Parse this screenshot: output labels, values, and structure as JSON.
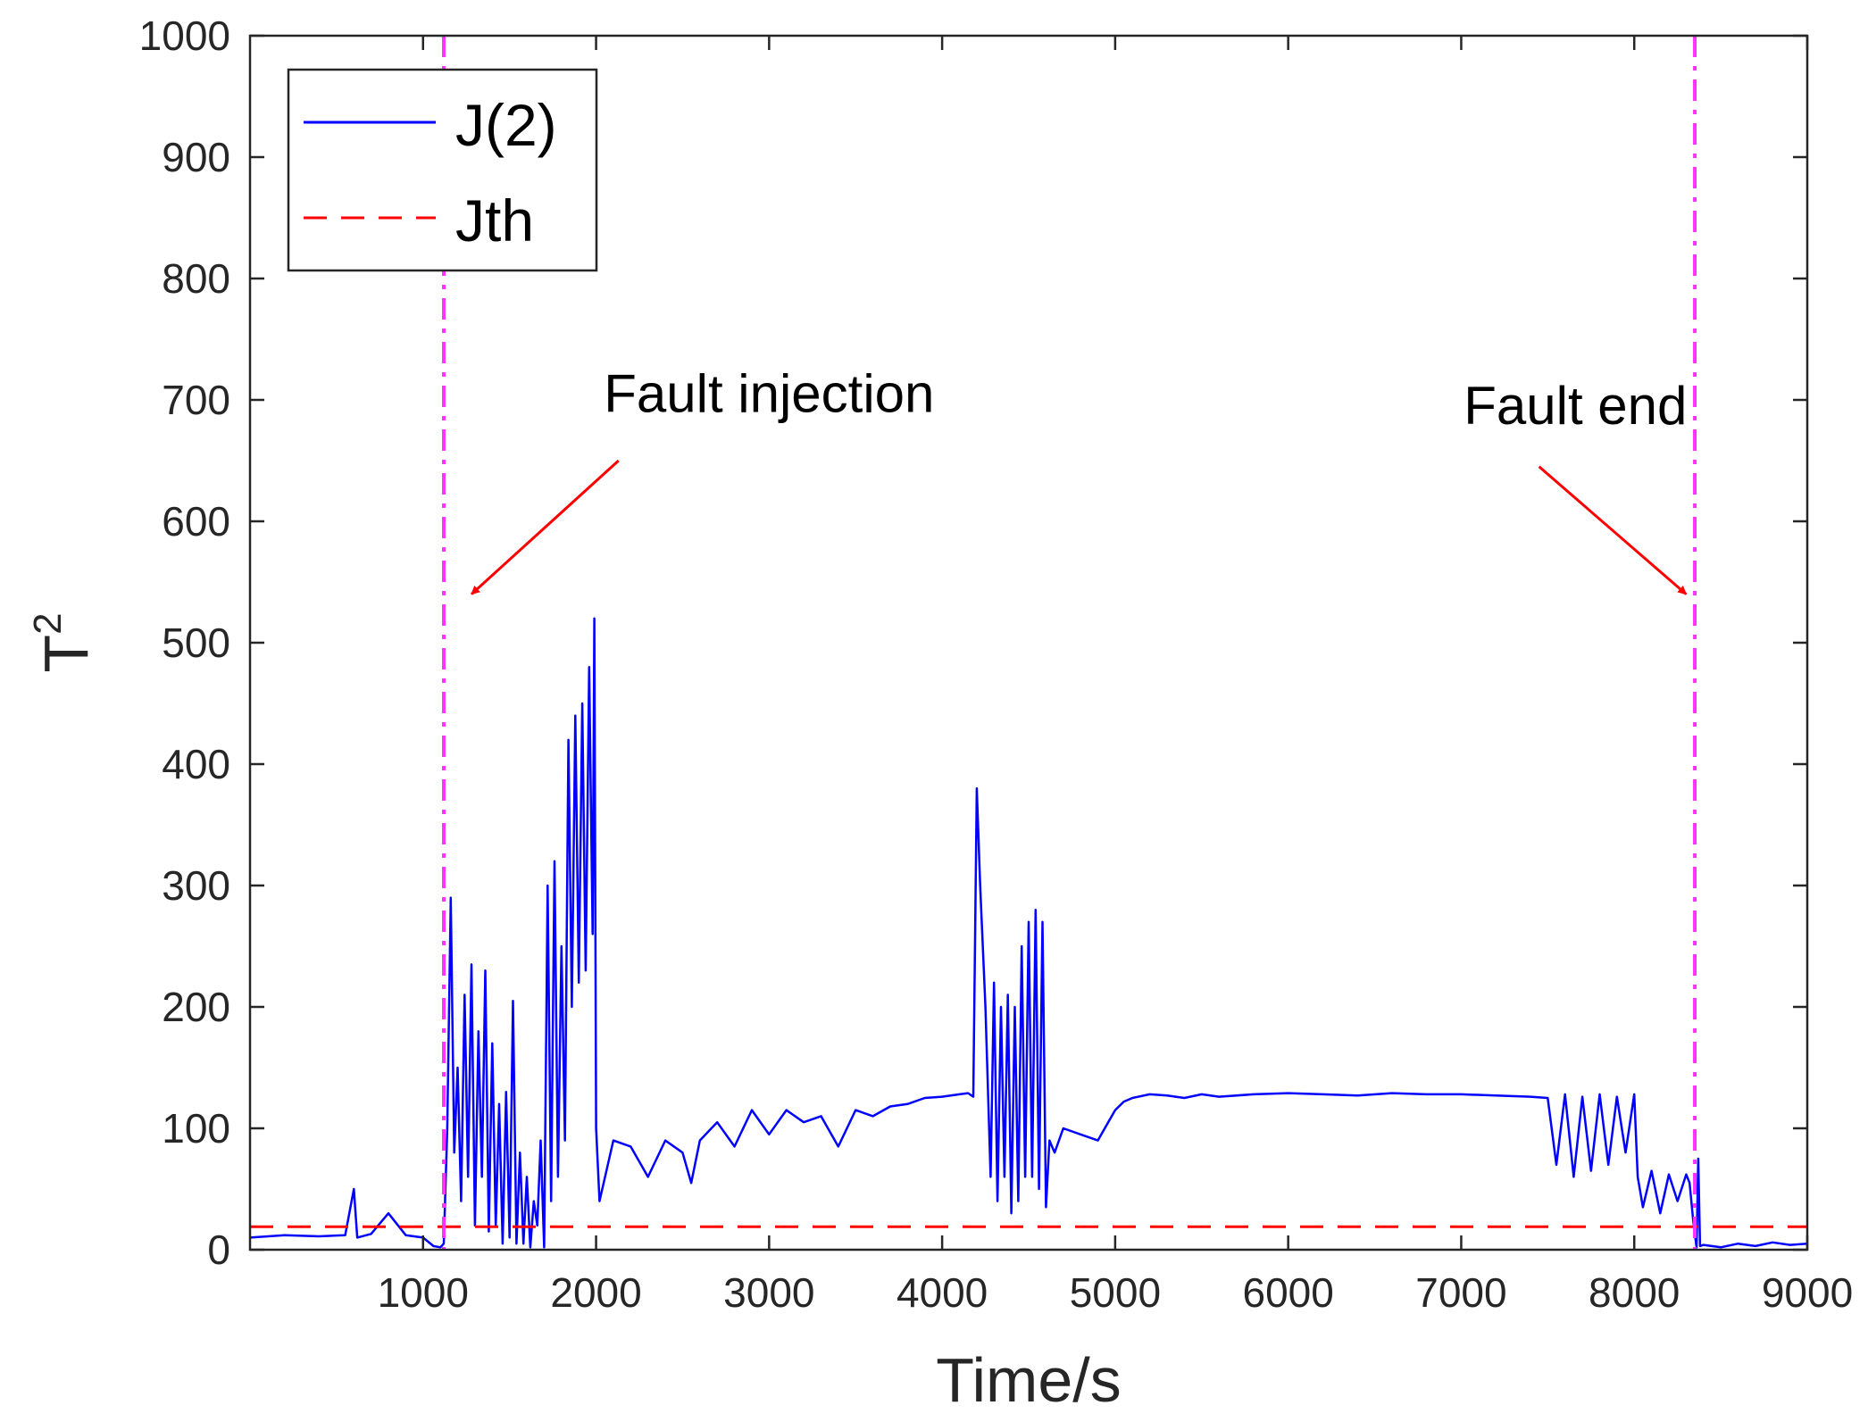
{
  "chart_data": {
    "type": "line",
    "title": "",
    "xlabel": "Time/s",
    "ylabel_base": "T",
    "ylabel_sup": "2",
    "xlim": [
      0,
      9000
    ],
    "ylim": [
      0,
      1000
    ],
    "xticks": [
      1000,
      2000,
      3000,
      4000,
      5000,
      6000,
      7000,
      8000,
      9000
    ],
    "yticks": [
      0,
      100,
      200,
      300,
      400,
      500,
      600,
      700,
      800,
      900,
      1000
    ],
    "grid": false,
    "legend_position": "top-left",
    "series": [
      {
        "name": "J(2)",
        "color": "#0000ff",
        "style": "solid",
        "x": [
          0,
          200,
          400,
          550,
          600,
          620,
          700,
          800,
          900,
          1000,
          1060,
          1100,
          1120,
          1140,
          1160,
          1180,
          1200,
          1220,
          1240,
          1260,
          1280,
          1300,
          1320,
          1340,
          1360,
          1380,
          1400,
          1420,
          1440,
          1460,
          1480,
          1500,
          1520,
          1540,
          1560,
          1580,
          1600,
          1620,
          1640,
          1660,
          1680,
          1700,
          1720,
          1740,
          1760,
          1780,
          1800,
          1820,
          1840,
          1860,
          1880,
          1900,
          1920,
          1940,
          1960,
          1980,
          1990,
          2000,
          2020,
          2100,
          2200,
          2300,
          2400,
          2500,
          2550,
          2600,
          2700,
          2800,
          2900,
          3000,
          3100,
          3200,
          3300,
          3400,
          3500,
          3600,
          3700,
          3800,
          3900,
          4000,
          4100,
          4150,
          4180,
          4200,
          4220,
          4250,
          4280,
          4300,
          4320,
          4340,
          4360,
          4380,
          4400,
          4420,
          4440,
          4460,
          4480,
          4500,
          4520,
          4540,
          4560,
          4580,
          4600,
          4620,
          4650,
          4700,
          4800,
          4900,
          5000,
          5050,
          5100,
          5200,
          5300,
          5400,
          5500,
          5600,
          5800,
          6000,
          6200,
          6400,
          6600,
          6800,
          7000,
          7200,
          7400,
          7500,
          7550,
          7600,
          7650,
          7700,
          7750,
          7800,
          7850,
          7900,
          7950,
          8000,
          8020,
          8050,
          8100,
          8150,
          8200,
          8250,
          8300,
          8320,
          8340,
          8360,
          8370,
          8380,
          8400,
          8500,
          8600,
          8700,
          8800,
          8900,
          9000
        ],
        "y": [
          10,
          12,
          11,
          12,
          50,
          10,
          13,
          30,
          12,
          10,
          3,
          2,
          5,
          100,
          290,
          80,
          150,
          40,
          210,
          60,
          235,
          20,
          180,
          60,
          230,
          15,
          170,
          20,
          120,
          5,
          130,
          10,
          205,
          5,
          80,
          5,
          60,
          2,
          40,
          20,
          90,
          2,
          300,
          40,
          320,
          60,
          250,
          90,
          420,
          200,
          440,
          220,
          450,
          230,
          480,
          260,
          520,
          100,
          40,
          90,
          85,
          60,
          90,
          80,
          55,
          90,
          105,
          85,
          115,
          95,
          115,
          105,
          110,
          85,
          115,
          110,
          118,
          120,
          125,
          126,
          128,
          129,
          126,
          380,
          300,
          200,
          60,
          220,
          40,
          200,
          60,
          210,
          30,
          200,
          40,
          250,
          60,
          270,
          60,
          280,
          50,
          270,
          35,
          90,
          80,
          100,
          95,
          90,
          115,
          122,
          125,
          128,
          127,
          125,
          128,
          126,
          128,
          129,
          128,
          127,
          129,
          128,
          128,
          127,
          126,
          125,
          70,
          128,
          60,
          126,
          65,
          128,
          70,
          126,
          80,
          128,
          60,
          35,
          65,
          30,
          62,
          40,
          62,
          55,
          25,
          2,
          75,
          3,
          4,
          2,
          5,
          3,
          6,
          4,
          5
        ]
      },
      {
        "name": "Jth",
        "color": "#ff0000",
        "style": "dashed",
        "x": [
          0,
          9000
        ],
        "y": [
          19,
          19
        ]
      }
    ],
    "vlines": [
      {
        "name": "fault-start",
        "x": 1120,
        "color": "#ff33ff",
        "style": "dashdot"
      },
      {
        "name": "fault-end",
        "x": 8350,
        "color": "#ff33ff",
        "style": "dashdot"
      }
    ],
    "annotations": [
      {
        "name": "fault-injection",
        "text": "Fault injection",
        "text_x": 3000,
        "text_y": 690,
        "arrow_from": [
          2130,
          650
        ],
        "arrow_to": [
          1280,
          540
        ]
      },
      {
        "name": "fault-end",
        "text": "Fault end",
        "text_x": 7660,
        "text_y": 680,
        "arrow_from": [
          7450,
          645
        ],
        "arrow_to": [
          8300,
          540
        ]
      }
    ]
  }
}
